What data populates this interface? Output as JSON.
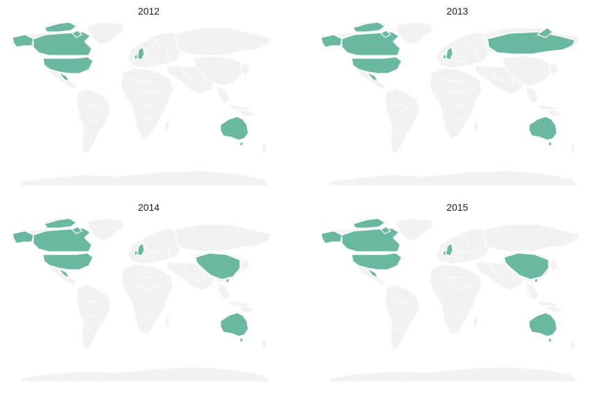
{
  "panels": [
    {
      "title": "2012",
      "highlighted": [
        "usa",
        "canada",
        "australia",
        "uk"
      ]
    },
    {
      "title": "2013",
      "highlighted": [
        "usa",
        "canada",
        "australia",
        "uk",
        "russia"
      ]
    },
    {
      "title": "2014",
      "highlighted": [
        "usa",
        "canada",
        "australia",
        "uk",
        "china"
      ]
    },
    {
      "title": "2015",
      "highlighted": [
        "usa",
        "canada",
        "australia",
        "uk",
        "china"
      ]
    }
  ],
  "colors": {
    "highlight": "#6ab7a2",
    "land": "#f2f2f2",
    "border": "#ffffff"
  }
}
